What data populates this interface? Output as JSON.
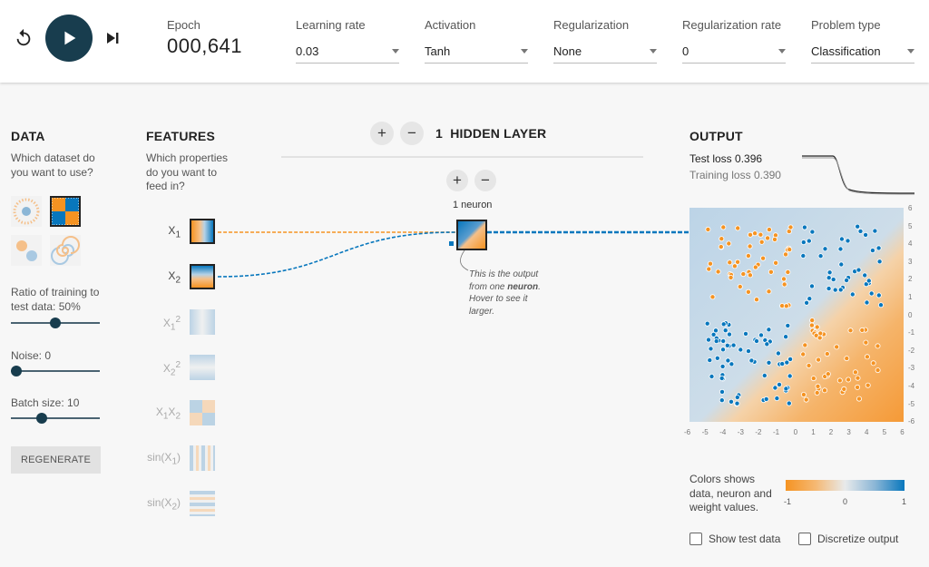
{
  "controls": {
    "epoch_label": "Epoch",
    "epoch_value": "000,641",
    "learning_rate": {
      "label": "Learning rate",
      "value": "0.03"
    },
    "activation": {
      "label": "Activation",
      "value": "Tanh"
    },
    "regularization": {
      "label": "Regularization",
      "value": "None"
    },
    "regularization_rate": {
      "label": "Regularization rate",
      "value": "0"
    },
    "problem_type": {
      "label": "Problem type",
      "value": "Classification"
    }
  },
  "data_panel": {
    "title": "DATA",
    "question": "Which dataset do you want to use?",
    "datasets": [
      "circle",
      "xor",
      "gaussian",
      "spiral"
    ],
    "selected_dataset": "xor",
    "ratio_label": "Ratio of training to test data:",
    "ratio_value": "50%",
    "ratio_fraction": 0.5,
    "noise_label": "Noise:",
    "noise_value": "0",
    "noise_fraction": 0,
    "batch_label": "Batch size:",
    "batch_value": "10",
    "batch_fraction": 0.33,
    "regenerate_label": "REGENERATE"
  },
  "features_panel": {
    "title": "FEATURES",
    "question": "Which properties do you want to feed in?",
    "features": [
      {
        "base": "X",
        "sub": "1",
        "sup": "",
        "active": true
      },
      {
        "base": "X",
        "sub": "2",
        "sup": "",
        "active": true
      },
      {
        "base": "X",
        "sub": "1",
        "sup": "2",
        "active": false
      },
      {
        "base": "X",
        "sub": "2",
        "sup": "2",
        "active": false
      },
      {
        "base": "X",
        "sub": "1",
        "base2": "X",
        "sub2": "2",
        "active": false
      },
      {
        "base": "sin(X",
        "sub": "1",
        "tail": ")",
        "active": false
      },
      {
        "base": "sin(X",
        "sub": "2",
        "tail": ")",
        "active": false
      }
    ]
  },
  "network": {
    "hidden_layer_count": "1",
    "hidden_layer_label": "HIDDEN LAYER",
    "neuron_label": "1 neuron",
    "note_before": "This is the output from one ",
    "note_bold": "neuron",
    "note_after": ". Hover to see it larger."
  },
  "output_panel": {
    "title": "OUTPUT",
    "test_loss_label": "Test loss",
    "test_loss_value": "0.396",
    "training_loss_label": "Training loss",
    "training_loss_value": "0.390",
    "axis_ticks_x": [
      "-6",
      "-5",
      "-4",
      "-3",
      "-2",
      "-1",
      "0",
      "1",
      "2",
      "3",
      "4",
      "5",
      "6"
    ],
    "axis_ticks_y": [
      "6",
      "5",
      "4",
      "3",
      "2",
      "1",
      "0",
      "-1",
      "-2",
      "-3",
      "-4",
      "-5",
      "-6"
    ],
    "legend_text": "Colors shows data, neuron and weight values.",
    "legend_ticks": [
      "-1",
      "0",
      "1"
    ],
    "show_test_data_label": "Show test data",
    "discretize_label": "Discretize output",
    "show_test_data_checked": false,
    "discretize_checked": false
  },
  "colors": {
    "orange": "#f59322",
    "blue": "#0877bd",
    "play": "#183d4e"
  }
}
